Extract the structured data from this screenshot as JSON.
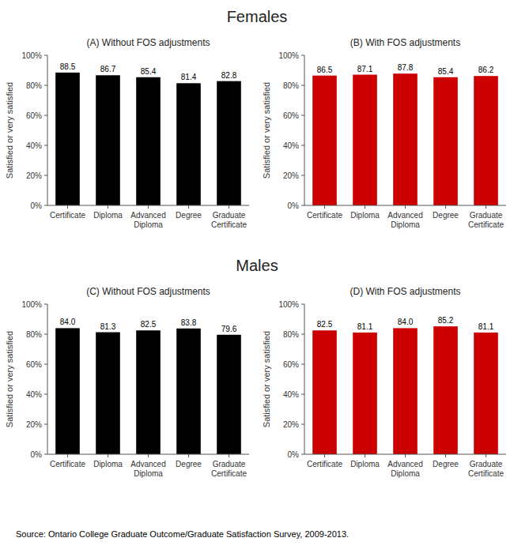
{
  "chart_data": [
    {
      "type": "bar",
      "title": "Females",
      "subtitle": "(A) Without FOS adjustments",
      "categories": [
        "Certificate",
        "Diploma",
        "Advanced\nDiploma",
        "Degree",
        "Graduate\nCertificate"
      ],
      "values": [
        88.5,
        86.7,
        85.4,
        81.4,
        82.8
      ],
      "value_labels": [
        "88.5",
        "86.7",
        "85.4",
        "81.4",
        "82.8"
      ],
      "color": "#000000",
      "y_label": "Satisfied or very satisfied",
      "ylim": [
        0,
        100
      ],
      "yticks": [
        {
          "value": 0,
          "label": "0%"
        },
        {
          "value": 20,
          "label": "20%"
        },
        {
          "value": 40,
          "label": "40%"
        },
        {
          "value": 60,
          "label": "60%"
        },
        {
          "value": 80,
          "label": "80%"
        },
        {
          "value": 100,
          "label": "100%"
        }
      ],
      "grid": false,
      "data_labels": true
    },
    {
      "type": "bar",
      "subtitle": "(B) With FOS adjustments",
      "categories": [
        "Certificate",
        "Diploma",
        "Advanced\nDiploma",
        "Degree",
        "Graduate\nCertificate"
      ],
      "values": [
        86.5,
        87.1,
        87.8,
        85.4,
        86.2
      ],
      "value_labels": [
        "86.5",
        "87.1",
        "87.8",
        "85.4",
        "86.2"
      ],
      "color": "#cc0000",
      "y_label": "Satisfied or very satisfied",
      "ylim": [
        0,
        100
      ],
      "yticks": [
        {
          "value": 0,
          "label": "0%"
        },
        {
          "value": 20,
          "label": "20%"
        },
        {
          "value": 40,
          "label": "40%"
        },
        {
          "value": 60,
          "label": "60%"
        },
        {
          "value": 80,
          "label": "80%"
        },
        {
          "value": 100,
          "label": "100%"
        }
      ],
      "grid": false,
      "data_labels": true
    },
    {
      "type": "bar",
      "title": "Males",
      "subtitle": "(C) Without FOS adjustments",
      "categories": [
        "Certificate",
        "Diploma",
        "Advanced\nDiploma",
        "Degree",
        "Graduate\nCertificate"
      ],
      "values": [
        84.0,
        81.3,
        82.5,
        83.8,
        79.6
      ],
      "value_labels": [
        "84.0",
        "81.3",
        "82.5",
        "83.8",
        "79.6"
      ],
      "color": "#000000",
      "y_label": "Satisfied or very satisfied",
      "ylim": [
        0,
        100
      ],
      "yticks": [
        {
          "value": 0,
          "label": "0%"
        },
        {
          "value": 20,
          "label": "20%"
        },
        {
          "value": 40,
          "label": "40%"
        },
        {
          "value": 60,
          "label": "60%"
        },
        {
          "value": 80,
          "label": "80%"
        },
        {
          "value": 100,
          "label": "100%"
        }
      ],
      "grid": false,
      "data_labels": true
    },
    {
      "type": "bar",
      "subtitle": "(D) With FOS adjustments",
      "categories": [
        "Certificate",
        "Diploma",
        "Advanced\nDiploma",
        "Degree",
        "Graduate\nCertificate"
      ],
      "values": [
        82.5,
        81.1,
        84.0,
        85.2,
        81.1
      ],
      "value_labels": [
        "82.5",
        "81.1",
        "84.0",
        "85.2",
        "81.1"
      ],
      "color": "#cc0000",
      "y_label": "Satisfied or very satisfied",
      "ylim": [
        0,
        100
      ],
      "yticks": [
        {
          "value": 0,
          "label": "0%"
        },
        {
          "value": 20,
          "label": "20%"
        },
        {
          "value": 40,
          "label": "40%"
        },
        {
          "value": 60,
          "label": "60%"
        },
        {
          "value": 80,
          "label": "80%"
        },
        {
          "value": 100,
          "label": "100%"
        }
      ],
      "grid": false,
      "data_labels": true,
      "annotations": [
        "Source: Ontario College Graduate Outcome/Graduate Satisfaction Survey, 2009-2013."
      ]
    }
  ]
}
